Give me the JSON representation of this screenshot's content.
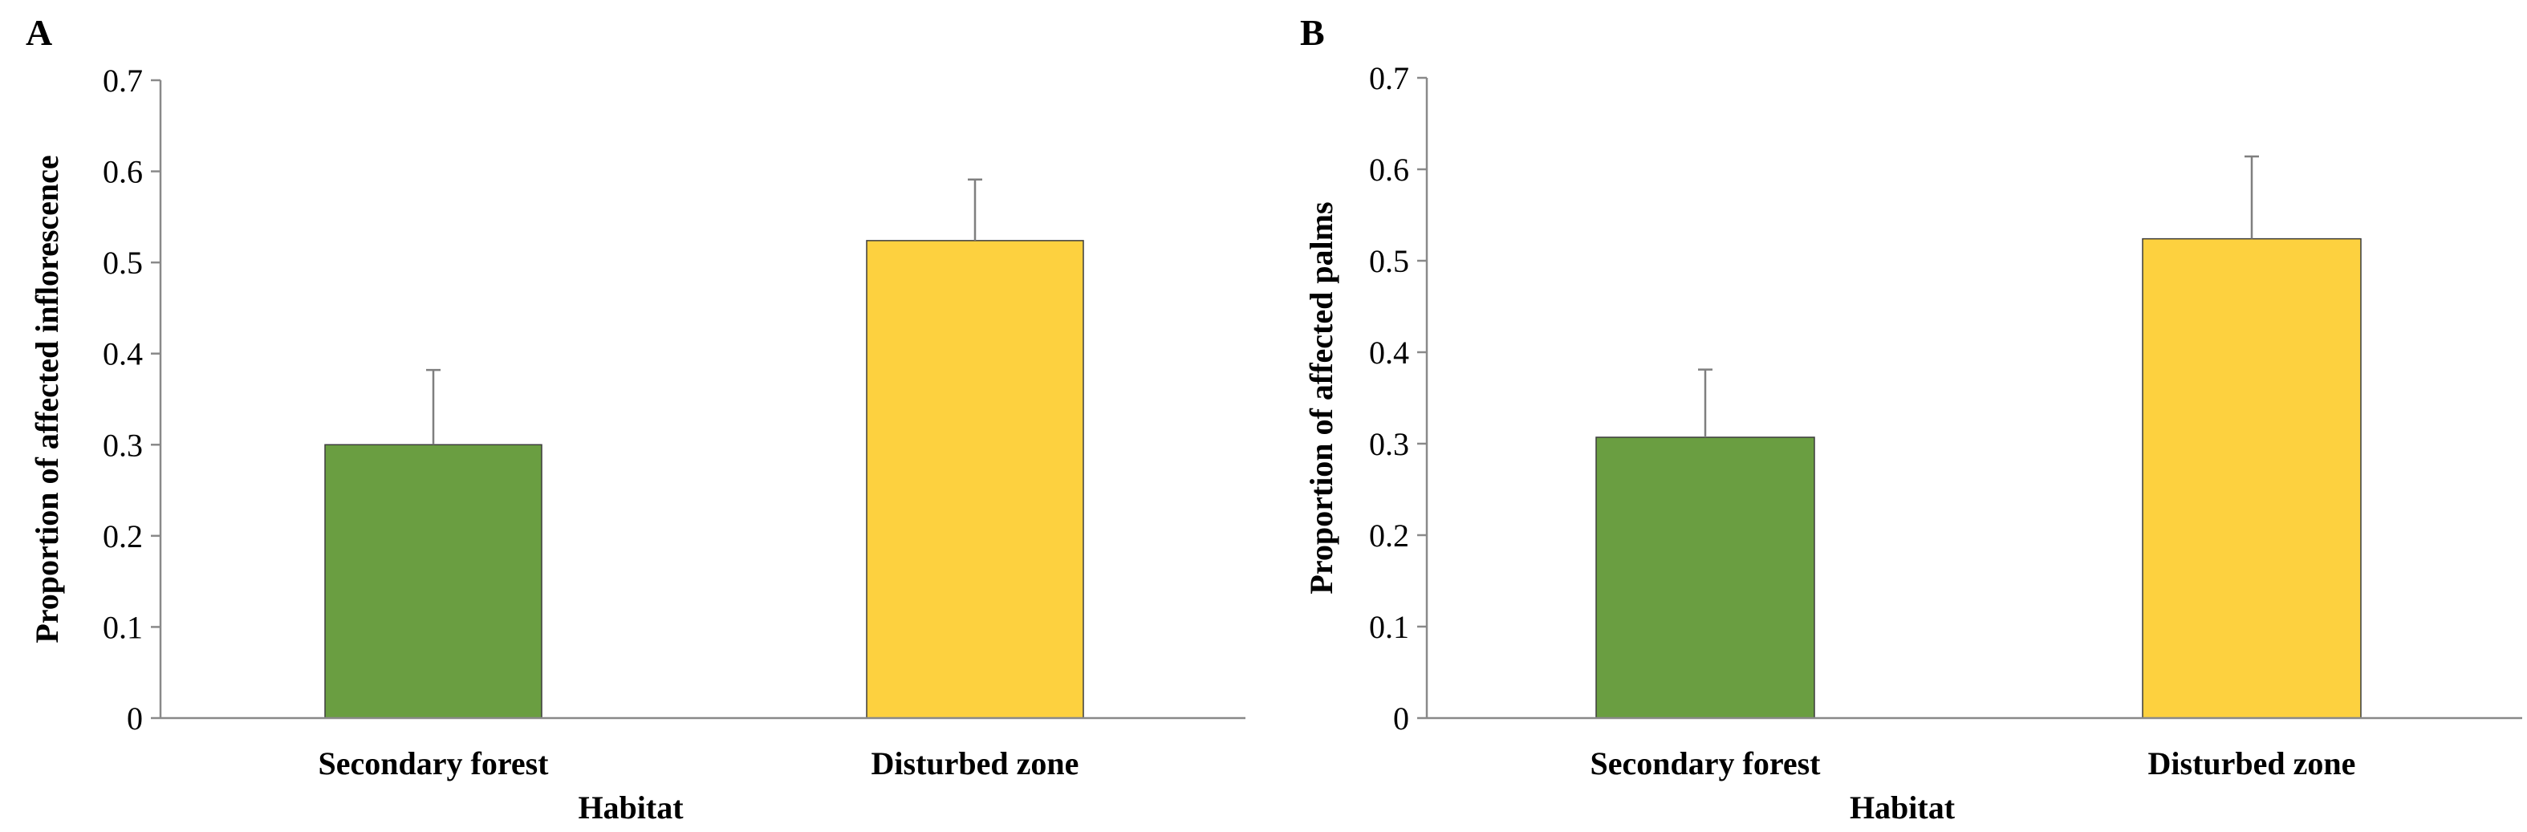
{
  "chart_data": [
    {
      "type": "bar",
      "panel": "A",
      "categories": [
        "Secondary forest",
        "Disturbed zone"
      ],
      "values": [
        0.3,
        0.524
      ],
      "error_upper": [
        0.382,
        0.591
      ],
      "colors": [
        "#6a9e41",
        "#fdd13f"
      ],
      "xlabel": "Habitat",
      "ylabel": "Proportion of affected inflorescence",
      "ylim": [
        0,
        0.7
      ],
      "yticks": [
        "0",
        "0.1",
        "0.2",
        "0.3",
        "0.4",
        "0.5",
        "0.6",
        "0.7"
      ],
      "grid": false,
      "legend": "none"
    },
    {
      "type": "bar",
      "panel": "B",
      "categories": [
        "Secondary forest",
        "Disturbed zone"
      ],
      "values": [
        0.307,
        0.524
      ],
      "error_upper": [
        0.381,
        0.614
      ],
      "colors": [
        "#6a9e41",
        "#fdd13f"
      ],
      "xlabel": "Habitat",
      "ylabel": "Proportion of affected palms",
      "ylim": [
        0,
        0.7
      ],
      "yticks": [
        "0",
        "0.1",
        "0.2",
        "0.3",
        "0.4",
        "0.5",
        "0.6",
        "0.7"
      ],
      "grid": false,
      "legend": "none"
    }
  ]
}
